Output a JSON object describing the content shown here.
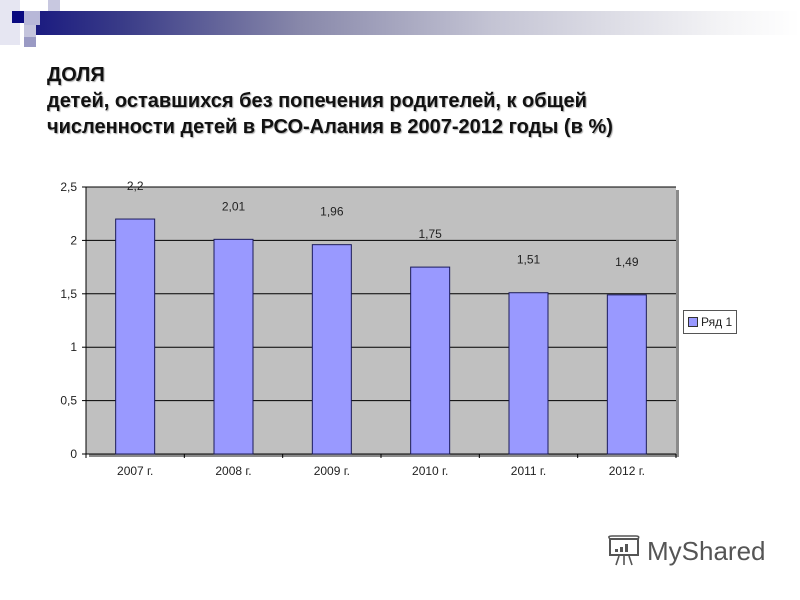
{
  "title": {
    "line1": "ДОЛЯ",
    "line2": "детей, оставшихся без попечения родителей, к общей",
    "line3": "численности детей в РСО-Алания в 2007-2012 годы (в %)"
  },
  "legend": {
    "label": "Ряд 1",
    "color": "#9999ff"
  },
  "watermark": {
    "text": "MyShared"
  },
  "colors": {
    "plot_bg": "#c0c0c0",
    "bar": "#9999ff",
    "bar_border": "#1a1a5a",
    "header_accent": "#1a1a80"
  },
  "chart_data": {
    "type": "bar",
    "title": "ДОЛЯ детей, оставшихся без попечения родителей, к общей численности детей в РСО-Алания в 2007-2012 годы (в %)",
    "categories": [
      "2007 г.",
      "2008 г.",
      "2009 г.",
      "2010 г.",
      "2011 г.",
      "2012 г."
    ],
    "series": [
      {
        "name": "Ряд 1",
        "values": [
          2.2,
          2.01,
          1.96,
          1.75,
          1.51,
          1.49
        ]
      }
    ],
    "value_labels": [
      "2,2",
      "2,01",
      "1,96",
      "1,75",
      "1,51",
      "1,49"
    ],
    "xlabel": "",
    "ylabel": "",
    "ylim": [
      0,
      2.5
    ],
    "yticks": [
      "0",
      "0,5",
      "1",
      "1,5",
      "2",
      "2,5"
    ],
    "grid": true,
    "legend_position": "right"
  }
}
